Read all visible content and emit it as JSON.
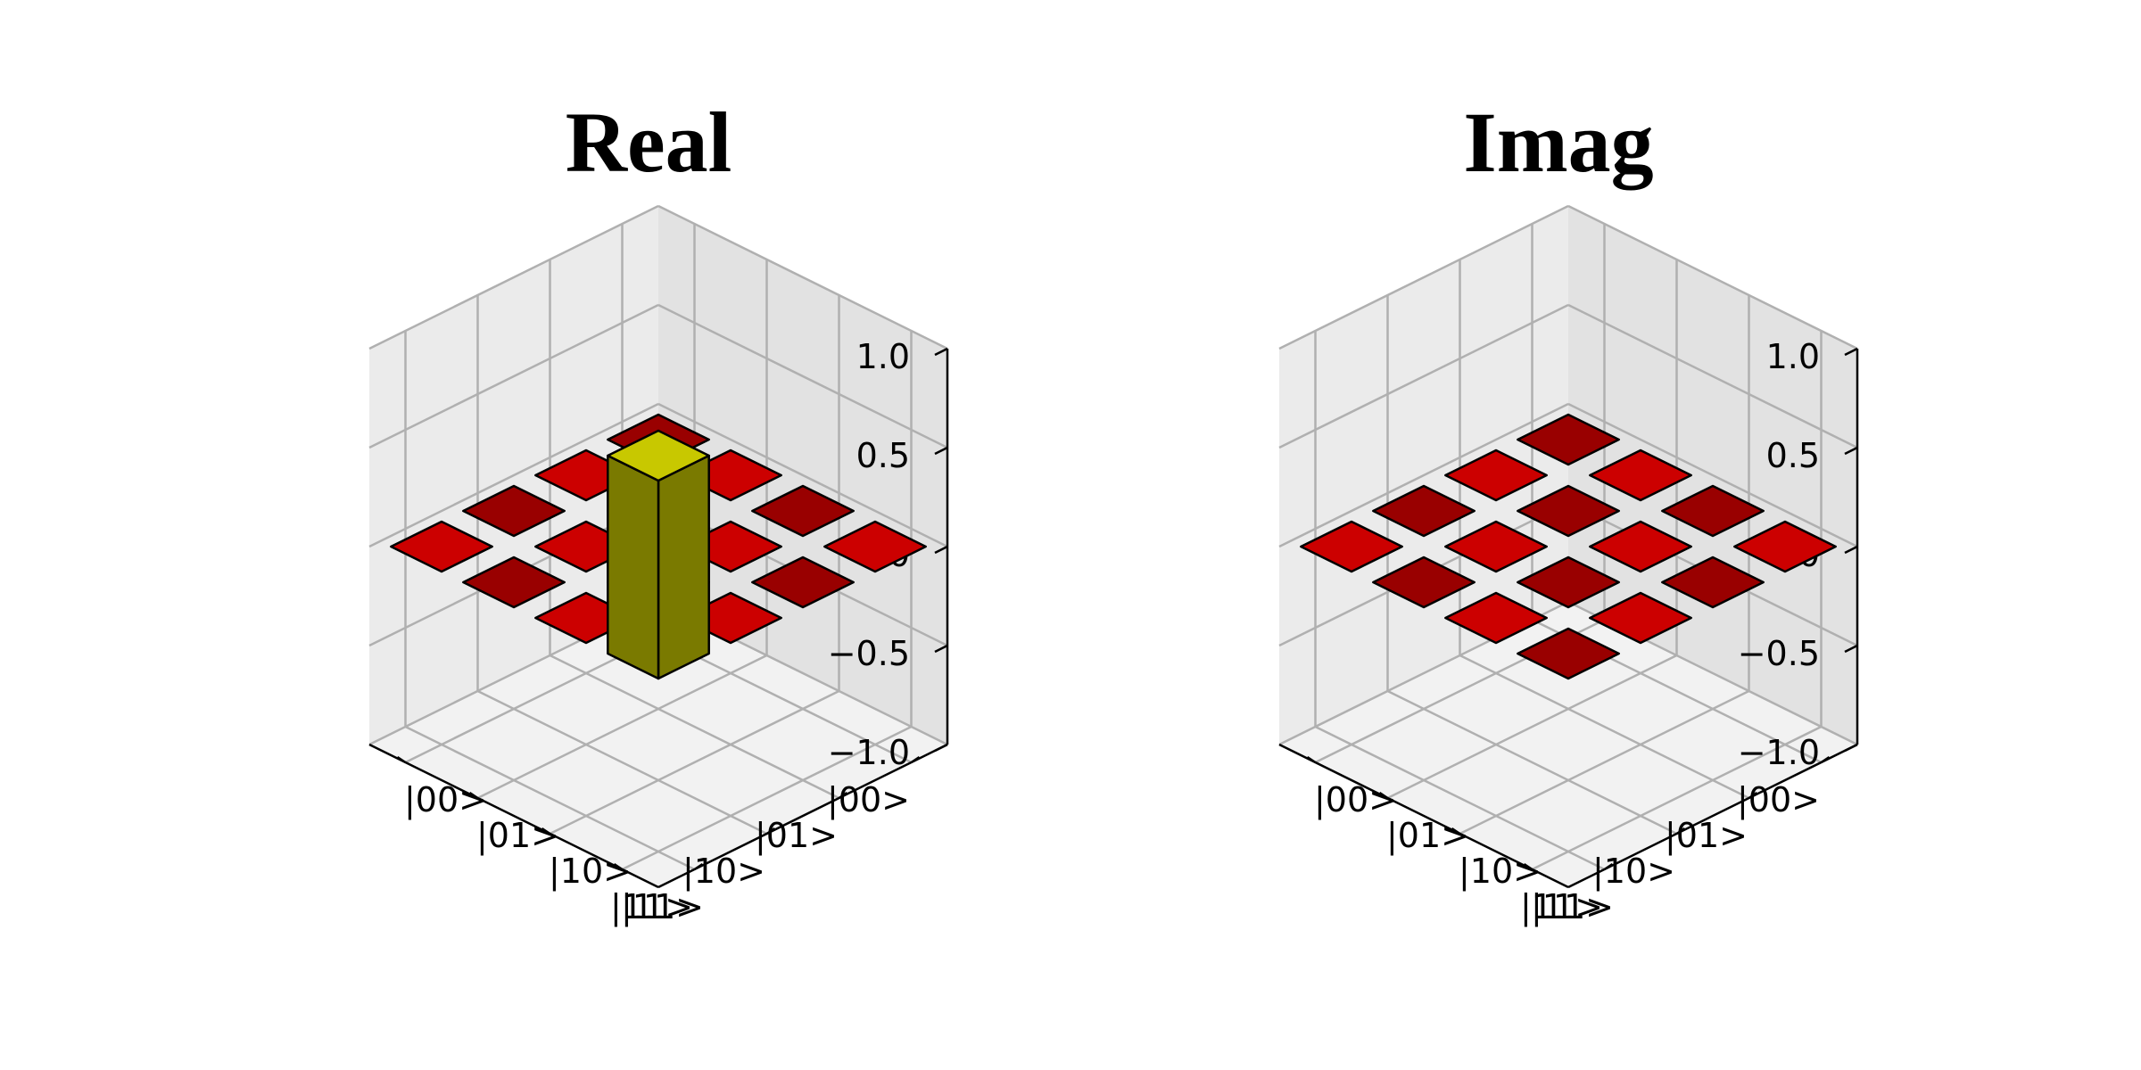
{
  "chart_data": [
    {
      "type": "bar3d",
      "title": "Real",
      "x_categories": [
        "|00>",
        "|01>",
        "|10>",
        "|11>"
      ],
      "y_categories": [
        "|00>",
        "|01>",
        "|10>",
        "|11>"
      ],
      "zlim": [
        -1.0,
        1.0
      ],
      "z_ticks": [
        "1.0",
        "0.5",
        "0.0",
        "−0.5",
        "−1.0"
      ],
      "grid": true,
      "values": [
        [
          0,
          0,
          0,
          0
        ],
        [
          0,
          0,
          0,
          0
        ],
        [
          0,
          0,
          0,
          0
        ],
        [
          0,
          0,
          0,
          1.0
        ]
      ],
      "colors": {
        "low": "#990000",
        "mid": "#cc0000",
        "high": "#c8c800",
        "high_side": "#7a7a00"
      }
    },
    {
      "type": "bar3d",
      "title": "Imag",
      "x_categories": [
        "|00>",
        "|01>",
        "|10>",
        "|11>"
      ],
      "y_categories": [
        "|00>",
        "|01>",
        "|10>",
        "|11>"
      ],
      "zlim": [
        -1.0,
        1.0
      ],
      "z_ticks": [
        "1.0",
        "0.5",
        "0.0",
        "−0.5",
        "−1.0"
      ],
      "grid": true,
      "values": [
        [
          0,
          0,
          0,
          0
        ],
        [
          0,
          0,
          0,
          0
        ],
        [
          0,
          0,
          0,
          0
        ],
        [
          0,
          0,
          0,
          0
        ]
      ],
      "colors": {
        "low": "#990000",
        "mid": "#cc0000",
        "high": "#c8c800",
        "high_side": "#7a7a00"
      }
    }
  ]
}
